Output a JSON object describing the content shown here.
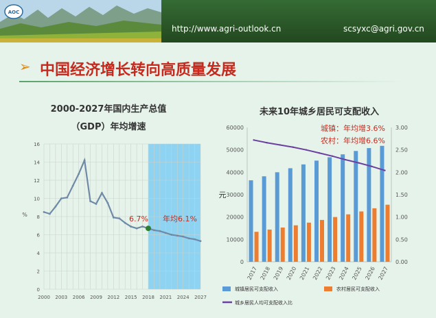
{
  "header": {
    "url": "http://www.agri-outlook.cn",
    "email": "scsyxc@agri.gov.cn",
    "logo_text": "AOC"
  },
  "slide": {
    "title": "中国经济增长转向高质量发展",
    "arrow": "➢"
  },
  "colors": {
    "page_bg": "#e6f3ea",
    "title_red": "#c62a1e",
    "urban_bar": "#5b9bd5",
    "rural_bar": "#ed7d31",
    "ratio_line": "#6b3fa0",
    "gdp_line": "#6f8aa6",
    "forecast_fill": "#8ed3f2",
    "marker": "#2e7d32"
  },
  "chart_data": [
    {
      "type": "line",
      "title": "2000-2027年国内生产总值",
      "subtitle": "（GDP）年均增速",
      "ylabel": "%",
      "ylim": [
        0,
        16
      ],
      "yticks": [
        0,
        2,
        4,
        6,
        8,
        10,
        12,
        14,
        16
      ],
      "xlim": [
        2000,
        2027
      ],
      "xticks": [
        2000,
        2003,
        2006,
        2009,
        2012,
        2015,
        2018,
        2021,
        2024,
        2027
      ],
      "forecast_start": 2018,
      "x": [
        2000,
        2001,
        2002,
        2003,
        2004,
        2005,
        2006,
        2007,
        2008,
        2009,
        2010,
        2011,
        2012,
        2013,
        2014,
        2015,
        2016,
        2017,
        2018,
        2019,
        2020,
        2021,
        2022,
        2023,
        2024,
        2025,
        2026,
        2027
      ],
      "values": [
        8.5,
        8.3,
        9.1,
        10.0,
        10.1,
        11.4,
        12.7,
        14.2,
        9.7,
        9.4,
        10.6,
        9.5,
        7.9,
        7.8,
        7.3,
        6.9,
        6.7,
        6.9,
        6.7,
        6.5,
        6.4,
        6.2,
        6.0,
        5.9,
        5.8,
        5.6,
        5.5,
        5.3
      ],
      "annotations": [
        {
          "x": 2018,
          "y": 6.7,
          "text": "6.7%"
        },
        {
          "text": "年均6.1%"
        }
      ]
    },
    {
      "type": "bar",
      "title": "未来10年城乡居民可支配收入",
      "ylabel": "元",
      "ylim": [
        0,
        60000
      ],
      "yticks": [
        0,
        10000,
        20000,
        30000,
        40000,
        50000,
        60000
      ],
      "y2lim": [
        0,
        3
      ],
      "y2ticks": [
        "0.00",
        "0.50",
        "1.00",
        "1.50",
        "2.00",
        "2.50",
        "3.00"
      ],
      "categories": [
        "2017",
        "2018",
        "2019",
        "2020",
        "2021",
        "2022",
        "2023",
        "2024",
        "2025",
        "2026",
        "2027"
      ],
      "series": [
        {
          "name": "城镇居民可支配收入",
          "type": "bar",
          "values": [
            36400,
            38200,
            40000,
            41800,
            43500,
            45200,
            46700,
            48000,
            49500,
            50800,
            51800
          ]
        },
        {
          "name": "农村居民可支配收入",
          "type": "bar",
          "values": [
            13400,
            14400,
            15300,
            16300,
            17500,
            18700,
            20000,
            21200,
            22500,
            23900,
            25500
          ]
        },
        {
          "name": "城乡居民人均可支配收入比",
          "type": "line",
          "axis": "right",
          "values": [
            2.72,
            2.66,
            2.61,
            2.56,
            2.5,
            2.43,
            2.36,
            2.28,
            2.21,
            2.13,
            2.04
          ]
        }
      ],
      "annotations": [
        {
          "text": "城镇：年均增3.6%"
        },
        {
          "text": "农村：年均增6.6%"
        }
      ]
    }
  ]
}
